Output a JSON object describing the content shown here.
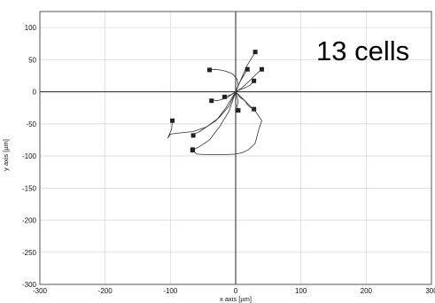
{
  "chart_data": {
    "type": "line",
    "annotation": "13 cells",
    "xlabel": "x axis [µm]",
    "ylabel": "y axis [µm]",
    "xlim": [
      -300,
      300
    ],
    "ylim": [
      -300,
      125
    ],
    "x_ticks": [
      -300,
      -200,
      -100,
      0,
      100,
      200,
      300
    ],
    "x_tick_labels": [
      "-300",
      "-200",
      "-100",
      "0",
      "100",
      "200",
      "300"
    ],
    "y_ticks": [
      100,
      50,
      0,
      -50,
      -100,
      -150,
      -200,
      -250,
      -300
    ],
    "y_tick_labels": [
      "100",
      "50",
      "0",
      "-50",
      "-100",
      "-150",
      "-200",
      "-250",
      "-300"
    ],
    "grid": true,
    "series": [
      {
        "x": [
          0,
          5,
          12,
          18,
          26,
          30
        ],
        "y": [
          0,
          12,
          28,
          42,
          55,
          62
        ]
      },
      {
        "x": [
          0,
          3,
          8,
          14,
          18
        ],
        "y": [
          0,
          8,
          18,
          28,
          35
        ]
      },
      {
        "x": [
          0,
          8,
          16,
          24,
          32,
          40
        ],
        "y": [
          0,
          5,
          12,
          20,
          28,
          35
        ]
      },
      {
        "x": [
          0,
          6,
          14,
          22,
          28
        ],
        "y": [
          0,
          3,
          6,
          10,
          17
        ]
      },
      {
        "x": [
          0,
          4,
          2,
          -5,
          -15,
          -25,
          -33,
          -40
        ],
        "y": [
          0,
          10,
          20,
          28,
          32,
          34,
          35,
          34
        ]
      },
      {
        "x": [
          0,
          -3,
          -6,
          -11,
          -17
        ],
        "y": [
          0,
          -2,
          -4,
          -6,
          -8
        ]
      },
      {
        "x": [
          0,
          -6,
          -14,
          -22,
          -28,
          -34,
          -37
        ],
        "y": [
          0,
          -4,
          -10,
          -12,
          -14,
          -13,
          -14
        ]
      },
      {
        "x": [
          0,
          6,
          14,
          18,
          22,
          28
        ],
        "y": [
          0,
          -8,
          -14,
          -20,
          -24,
          -27
        ]
      },
      {
        "x": [
          0,
          2,
          4,
          2,
          3,
          4
        ],
        "y": [
          0,
          -8,
          -16,
          -22,
          -26,
          -29
        ]
      },
      {
        "x": [
          0,
          -10,
          -25,
          -45,
          -65,
          -85,
          -100,
          -104,
          -98,
          -97
        ],
        "y": [
          0,
          -22,
          -40,
          -55,
          -62,
          -64,
          -66,
          -72,
          -58,
          -45
        ]
      },
      {
        "x": [
          0,
          -15,
          -30,
          -45,
          -55,
          -62,
          -65
        ],
        "y": [
          0,
          -25,
          -45,
          -55,
          -62,
          -65,
          -68
        ]
      },
      {
        "x": [
          0,
          -10,
          -25,
          -40,
          -55,
          -62,
          -66
        ],
        "y": [
          0,
          -30,
          -55,
          -75,
          -85,
          -89,
          -91
        ]
      },
      {
        "x": [
          0,
          10,
          20,
          30,
          40,
          35,
          30,
          20,
          10,
          0,
          -20,
          -40,
          -60,
          -66
        ],
        "y": [
          0,
          -10,
          -20,
          -30,
          -45,
          -60,
          -80,
          -90,
          -95,
          -97,
          -98,
          -98,
          -97,
          -90
        ]
      }
    ]
  }
}
